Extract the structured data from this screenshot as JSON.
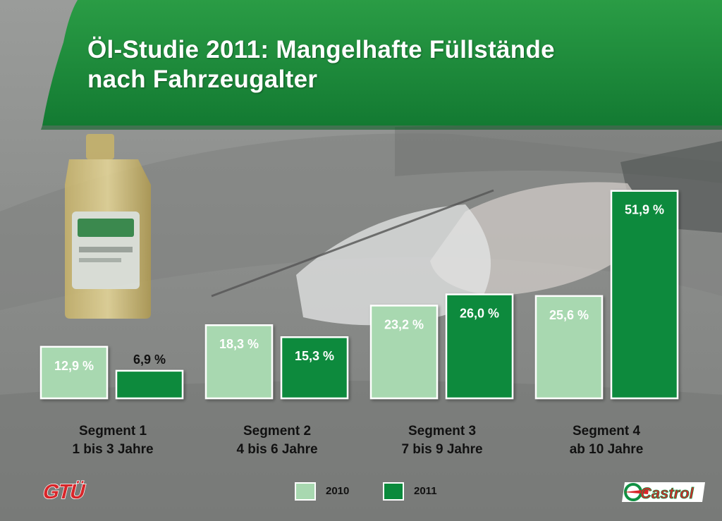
{
  "title_line1": "Öl-Studie 2011: Mangelhafte Füllstände",
  "title_line2": "nach Fahrzeugalter",
  "colors": {
    "banner": "#1f8c3a",
    "bar_2010": "#a8d8b0",
    "bar_2011": "#0a8a3c"
  },
  "logos": {
    "left": "GTÜ",
    "right": "Castrol"
  },
  "chart_data": {
    "type": "bar",
    "categories": [
      [
        "Segment 1",
        "1 bis 3 Jahre"
      ],
      [
        "Segment 2",
        "4 bis 6 Jahre"
      ],
      [
        "Segment 3",
        "7 bis 9 Jahre"
      ],
      [
        "Segment 4",
        "ab 10 Jahre"
      ]
    ],
    "series": [
      {
        "name": "2010",
        "values": [
          12.9,
          18.3,
          23.2,
          25.6
        ],
        "labels": [
          "12,9 %",
          "18,3 %",
          "23,2 %",
          "25,6 %"
        ]
      },
      {
        "name": "2011",
        "values": [
          6.9,
          15.3,
          26.0,
          51.9
        ],
        "labels": [
          "6,9 %",
          "15,3 %",
          "26,0 %",
          "51,9 %"
        ]
      }
    ],
    "legend_position": "bottom",
    "grid": false
  }
}
